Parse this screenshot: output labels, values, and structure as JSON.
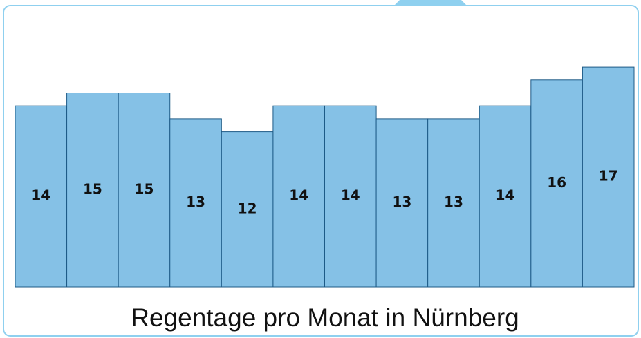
{
  "chart_data": {
    "type": "bar",
    "title": "Regentage pro Monat in Nürnberg",
    "values": [
      14,
      15,
      15,
      13,
      12,
      14,
      14,
      13,
      13,
      14,
      16,
      17
    ],
    "color": "#85c1e6"
  }
}
